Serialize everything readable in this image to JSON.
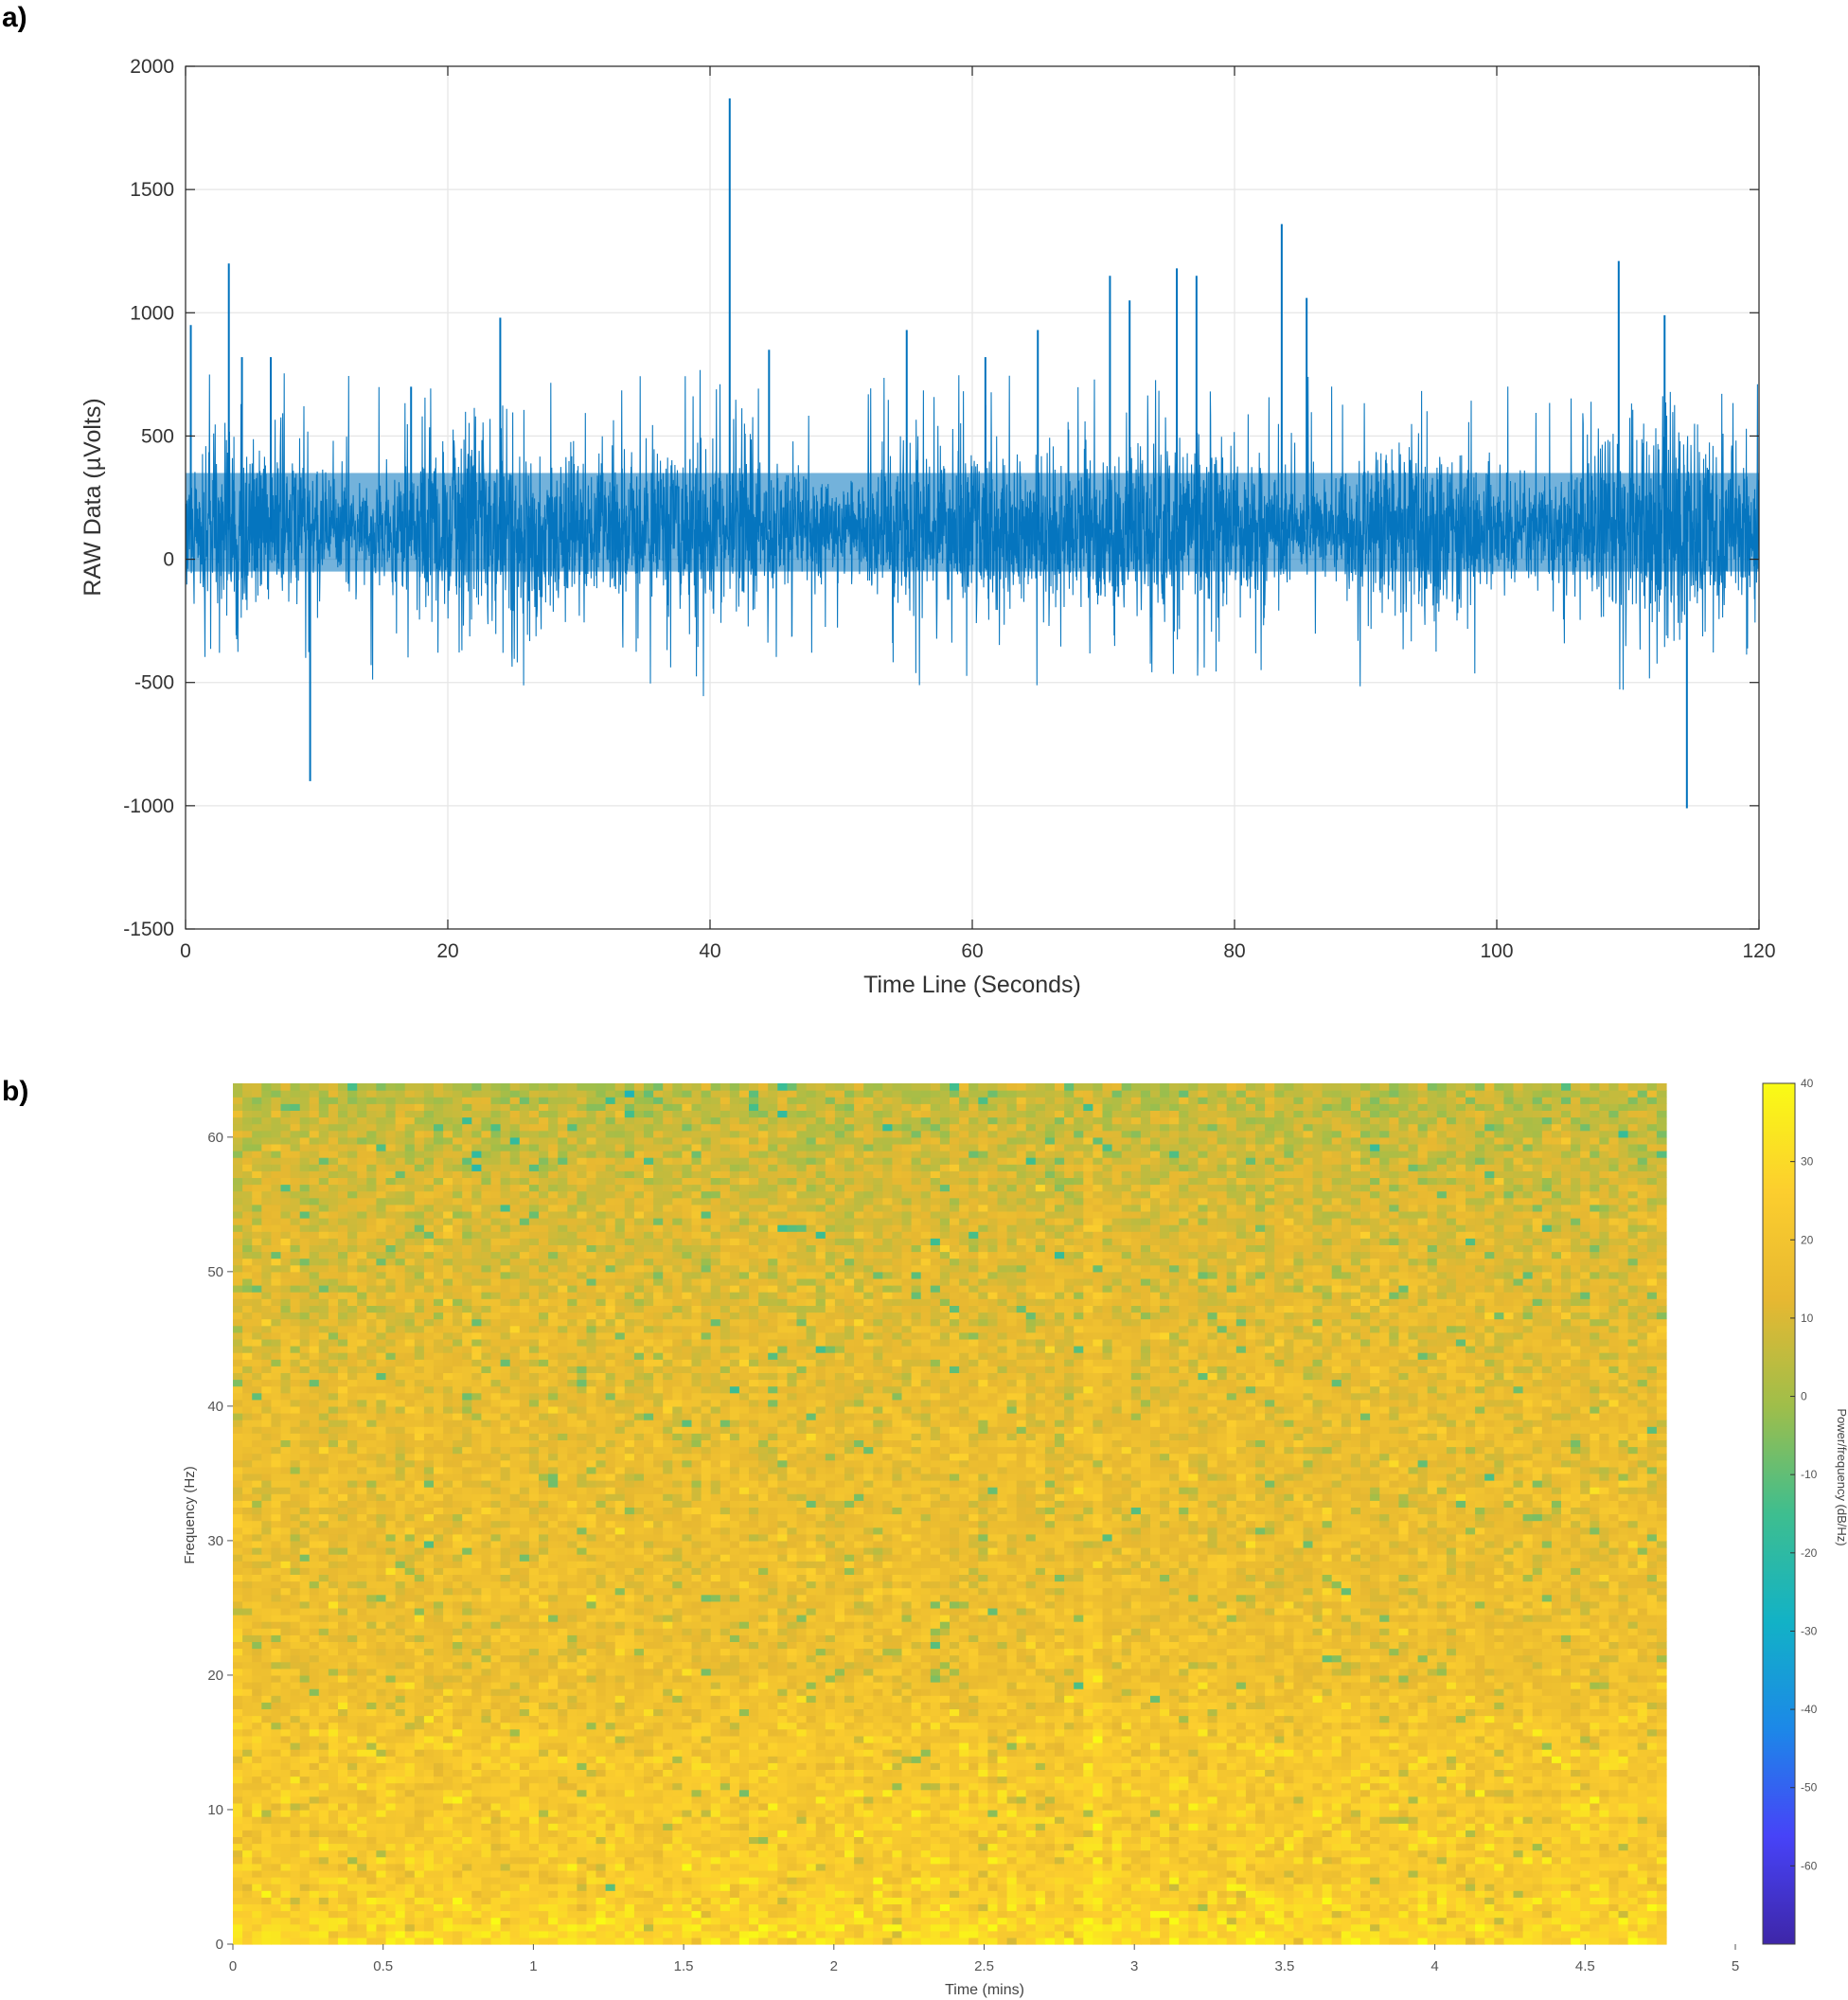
{
  "figure": {
    "panel_a_label": "a)",
    "panel_b_label": "b)"
  },
  "chart_data": [
    {
      "type": "line",
      "panel": "a)",
      "xlabel": "Time Line (Seconds)",
      "ylabel": "RAW Data (µVolts)",
      "xlim": [
        0,
        120
      ],
      "ylim": [
        -1500,
        2000
      ],
      "xticks": [
        "0",
        "20",
        "40",
        "60",
        "80",
        "100",
        "120"
      ],
      "yticks": [
        "2000",
        "1500",
        "1000",
        "500",
        "0",
        "-500",
        "-1000",
        "-1500"
      ],
      "grid": true,
      "line_color": "#0072BD",
      "baseline_mean_uV": 120,
      "noise_band_uV": [
        -250,
        450
      ],
      "x_spikes": [
        0.4,
        3.3,
        4.3,
        6.5,
        9.5,
        17.2,
        24,
        41.5,
        44.5,
        55,
        61,
        65,
        70.5,
        72,
        75.6,
        77.1,
        83.6,
        85.5,
        109.3,
        112.8,
        114.5
      ],
      "y_spikes": [
        950,
        1200,
        820,
        820,
        -900,
        700,
        980,
        1870,
        850,
        930,
        820,
        930,
        1150,
        1050,
        1180,
        1150,
        1360,
        1060,
        1210,
        990,
        -1010
      ]
    },
    {
      "type": "heatmap",
      "panel": "b)",
      "xlabel": "Time (mins)",
      "ylabel": "Frequency (Hz)",
      "colorbar_label": "Power/frequency (dB/Hz)",
      "xlim": [
        0,
        5
      ],
      "ylim": [
        0,
        64
      ],
      "xticks": [
        "0",
        "0.5",
        "1",
        "1.5",
        "2",
        "2.5",
        "3",
        "3.5",
        "4",
        "4.5",
        "5"
      ],
      "yticks": [
        "0",
        "10",
        "20",
        "30",
        "40",
        "50",
        "60"
      ],
      "colorbar_ticks": [
        "40",
        "30",
        "20",
        "10",
        "0",
        "-10",
        "-20",
        "-30",
        "-40",
        "-50",
        "-60"
      ],
      "colorbar_range_dB": [
        -70,
        40
      ],
      "data_time_end_mins": 4.77,
      "colormap": "parula",
      "colormap_stops": [
        "#3e26a8",
        "#4743f8",
        "#1c88e8",
        "#12b2c6",
        "#3ebe8f",
        "#9fbe4a",
        "#e7b831",
        "#fcce2e",
        "#f9fb15"
      ],
      "power_profile_dB": [
        {
          "freq_hz": 0,
          "power_db": 30
        },
        {
          "freq_hz": 5,
          "power_db": 24
        },
        {
          "freq_hz": 15,
          "power_db": 22
        },
        {
          "freq_hz": 20,
          "power_db": 17
        },
        {
          "freq_hz": 40,
          "power_db": 15
        },
        {
          "freq_hz": 55,
          "power_db": 10
        },
        {
          "freq_hz": 64,
          "power_db": 4
        }
      ],
      "bright_time_mins": 2.87
    }
  ]
}
